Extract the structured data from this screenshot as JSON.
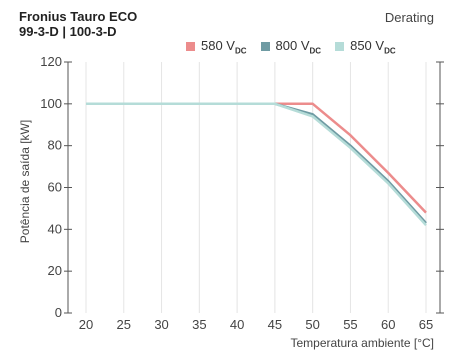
{
  "header": {
    "title_line1": "Fronius Tauro ECO",
    "title_line2": "99-3-D | 100-3-D",
    "tag": "Derating"
  },
  "chart_data": {
    "type": "line",
    "xlabel": "Temperatura ambiente  [°C]",
    "ylabel": "Potência de saída [kW]",
    "xlim": [
      20,
      65
    ],
    "ylim": [
      0,
      120
    ],
    "x_ticks": [
      20,
      25,
      30,
      35,
      40,
      45,
      50,
      55,
      60,
      65
    ],
    "y_ticks": [
      0,
      20,
      40,
      60,
      80,
      100,
      120
    ],
    "grid": "vertical",
    "legend_position": "top",
    "series": [
      {
        "name": "580 V",
        "name_sub": "DC",
        "color": "#ec8c8c",
        "x": [
          20,
          45,
          50,
          55,
          60,
          65
        ],
        "y": [
          100,
          100,
          100,
          85,
          67,
          48
        ]
      },
      {
        "name": "800 V",
        "name_sub": "DC",
        "color": "#6f9ba3",
        "x": [
          20,
          45,
          50,
          55,
          60,
          65
        ],
        "y": [
          100,
          100,
          95,
          80,
          63,
          43
        ]
      },
      {
        "name": "850 V",
        "name_sub": "DC",
        "color": "#b5dcd8",
        "x": [
          20,
          45,
          50,
          55,
          60,
          65
        ],
        "y": [
          100,
          100,
          94,
          79,
          62,
          42
        ]
      }
    ]
  }
}
